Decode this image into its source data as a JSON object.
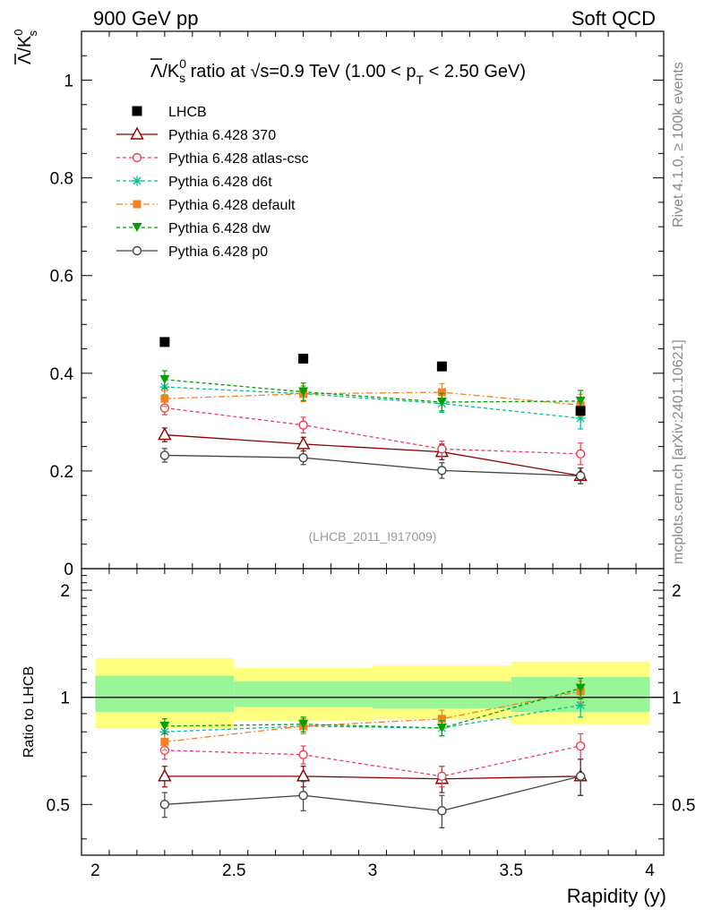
{
  "header": {
    "left": "900 GeV pp",
    "right": "Soft QCD"
  },
  "sidebar": {
    "rivet": "Rivet 4.1.0, ≥ 100k events",
    "mcplots": "mcplots.cern.ch [arXiv:2401.10621]"
  },
  "chart_data": {
    "type": "line",
    "title": "Λ̄/K⁰s ratio at √s=0.9 TeV (1.00 < pT < 2.50 GeV)",
    "title_parts": {
      "lambda_bar": "Λ",
      "slash_k": "/K",
      "sup0": "0",
      "subs": "s",
      "ratio_at": " ratio at ",
      "sqrt": "√",
      "s_energy": "s=0.9 TeV (1.00 < p",
      "subT": "T",
      "range_end": " < 2.50 GeV)"
    },
    "ylabel_main": {
      "lambda_bar": "Λ",
      "slash_k": "/K",
      "sup": "0",
      "sub": "s"
    },
    "ylabel_ratio": "Ratio to LHCB",
    "xlabel": "Rapidity (y)",
    "watermark": "(LHCB_2011_I917009)",
    "x": [
      2.25,
      2.75,
      3.25,
      3.75
    ],
    "xlim": [
      1.95,
      4.05
    ],
    "ylim_main": [
      0,
      1.1
    ],
    "ylim_ratio": [
      0.36,
      2.3
    ],
    "x_ticks": [
      "2",
      "2.5",
      "3",
      "3.5",
      "4"
    ],
    "y_ticks_main": [
      "0",
      "0.2",
      "0.4",
      "0.6",
      "0.8",
      "1"
    ],
    "y_ticks_ratio": [
      "0.5",
      "1",
      "2"
    ],
    "data": {
      "name": "LHCB",
      "values": [
        0.464,
        0.43,
        0.414,
        0.323
      ],
      "band_edges": [
        2.0,
        2.5,
        3.0,
        3.5,
        4.0
      ],
      "band_inner": [
        [
          0.91,
          1.15
        ],
        [
          0.94,
          1.11
        ],
        [
          0.93,
          1.11
        ],
        [
          0.91,
          1.14
        ]
      ],
      "band_outer": [
        [
          0.82,
          1.29
        ],
        [
          0.86,
          1.21
        ],
        [
          0.87,
          1.23
        ],
        [
          0.84,
          1.26
        ]
      ]
    },
    "series": [
      {
        "name": "Pythia 6.428 370",
        "color": "#8b0000",
        "dash": "",
        "marker": "triangle-open",
        "values": [
          0.274,
          0.255,
          0.239,
          0.19
        ],
        "errors": [
          0.014,
          0.014,
          0.016,
          0.016
        ],
        "ratio": [
          0.6,
          0.6,
          0.59,
          0.6
        ],
        "ratio_err": [
          0.04,
          0.04,
          0.05,
          0.07
        ]
      },
      {
        "name": "Pythia 6.428 atlas-csc",
        "color": "#f03c5a",
        "dash": "4,3",
        "marker": "circle-open",
        "values": [
          0.329,
          0.294,
          0.245,
          0.235
        ],
        "errors": [
          0.014,
          0.016,
          0.016,
          0.022
        ],
        "ratio": [
          0.71,
          0.69,
          0.6,
          0.73
        ],
        "ratio_err": [
          0.04,
          0.04,
          0.04,
          0.06
        ]
      },
      {
        "name": "Pythia 6.428 d6t",
        "color": "#00bf90",
        "dash": "4,3",
        "marker": "star",
        "values": [
          0.372,
          0.358,
          0.338,
          0.308
        ],
        "errors": [
          0.016,
          0.016,
          0.018,
          0.022
        ],
        "ratio": [
          0.8,
          0.83,
          0.82,
          0.95
        ],
        "ratio_err": [
          0.04,
          0.04,
          0.04,
          0.07
        ]
      },
      {
        "name": "Pythia 6.428 default",
        "color": "#f58220",
        "dash": "7,3,2,3",
        "marker": "square",
        "values": [
          0.348,
          0.358,
          0.361,
          0.335
        ],
        "errors": [
          0.016,
          0.016,
          0.018,
          0.022
        ],
        "ratio": [
          0.75,
          0.83,
          0.87,
          1.04
        ],
        "ratio_err": [
          0.04,
          0.04,
          0.05,
          0.07
        ]
      },
      {
        "name": "Pythia 6.428 dw",
        "color": "#00a000",
        "dash": "4,3",
        "marker": "triangle-down",
        "values": [
          0.387,
          0.362,
          0.341,
          0.343
        ],
        "errors": [
          0.018,
          0.018,
          0.018,
          0.022
        ],
        "ratio": [
          0.83,
          0.84,
          0.82,
          1.06
        ],
        "ratio_err": [
          0.04,
          0.04,
          0.04,
          0.07
        ]
      },
      {
        "name": "Pythia 6.428 p0",
        "color": "#444444",
        "dash": "",
        "marker": "circle-open",
        "values": [
          0.232,
          0.227,
          0.201,
          0.19
        ],
        "errors": [
          0.014,
          0.014,
          0.016,
          0.016
        ],
        "ratio": [
          0.5,
          0.53,
          0.48,
          0.6
        ],
        "ratio_err": [
          0.04,
          0.05,
          0.05,
          0.07
        ]
      }
    ]
  }
}
